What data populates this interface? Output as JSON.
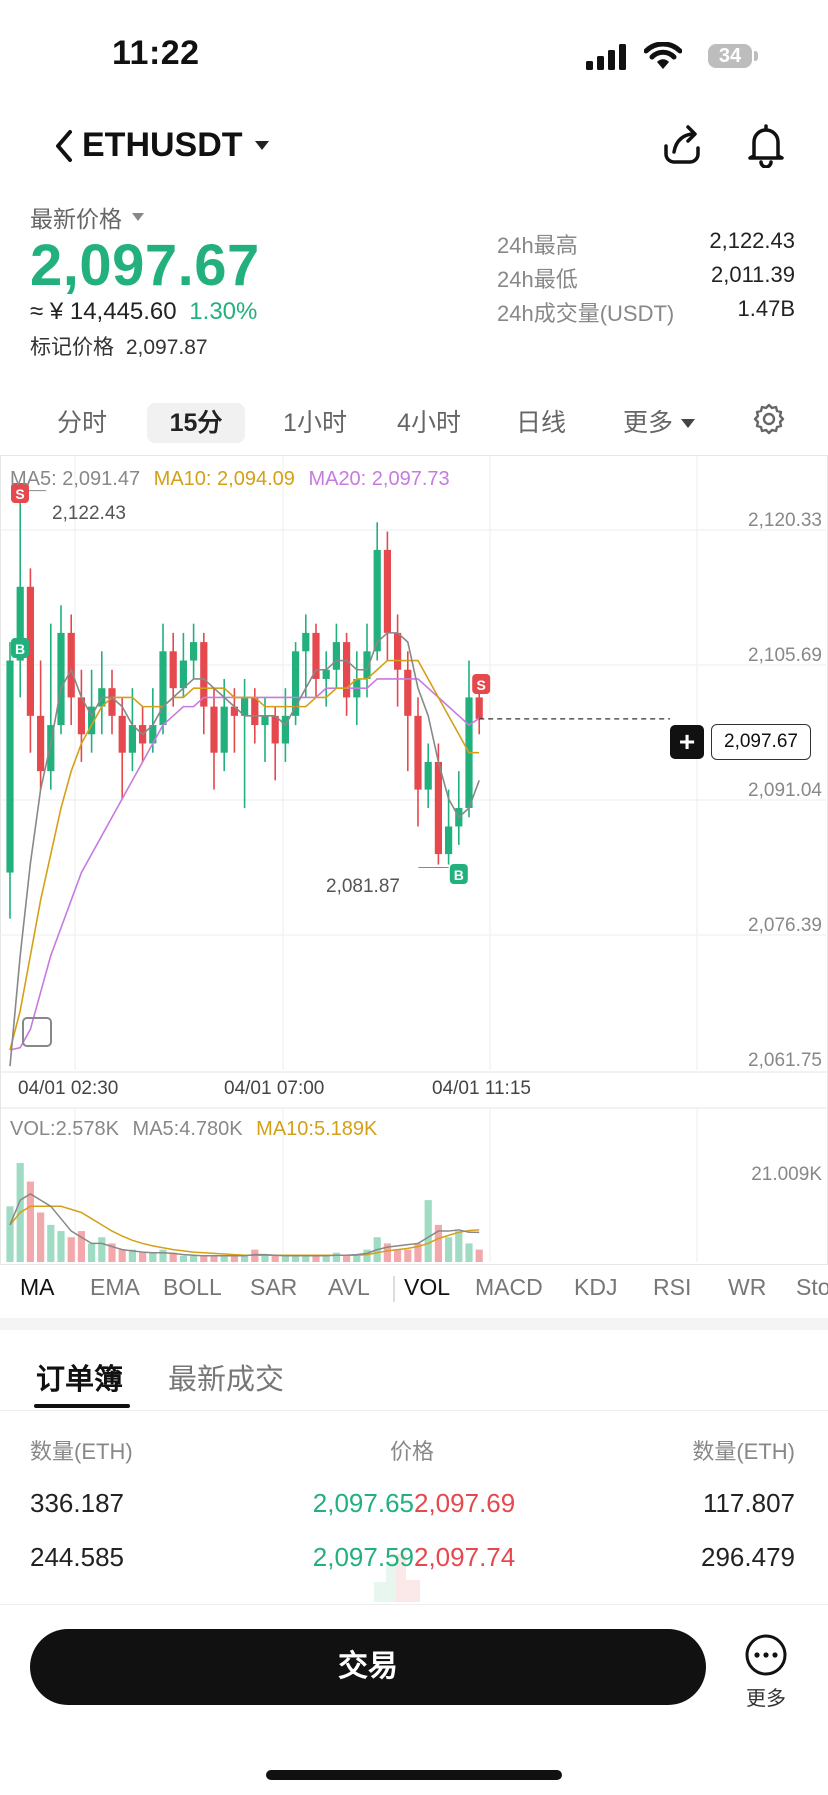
{
  "status_bar": {
    "time": "11:22",
    "battery": "34"
  },
  "header": {
    "pair": "ETHUSDT"
  },
  "price": {
    "latest_label": "最新价格",
    "last": "2,097.67",
    "cny": "≈ ¥ 14,445.60",
    "change_pct": "1.30%",
    "mark_label": "标记价格",
    "mark_value": "2,097.87"
  },
  "stats": [
    {
      "label": "24h最高",
      "value": "2,122.43"
    },
    {
      "label": "24h最低",
      "value": "2,011.39"
    },
    {
      "label": "24h成交量(USDT)",
      "value": "1.47B"
    }
  ],
  "intervals": [
    "分时",
    "15分",
    "1小时",
    "4小时",
    "日线",
    "更多"
  ],
  "active_interval": "15分",
  "chart": {
    "ma5": "MA5: 2,091.47",
    "ma10": "MA10: 2,094.09",
    "ma20": "MA20: 2,097.73",
    "ma_colors": {
      "ma5": "#888888",
      "ma10": "#d4a017",
      "ma20": "#c77ae0"
    },
    "y_ticks": [
      "2,120.33",
      "2,105.69",
      "2,091.04",
      "2,076.39",
      "2,061.75"
    ],
    "x_ticks": [
      "04/01 02:30",
      "04/01 07:00",
      "04/01 11:15"
    ],
    "high_label": "2,122.43",
    "low_label": "2,081.87",
    "current_price": "2,097.67",
    "vol_label": "VOL:2.578K",
    "vol_ma5": "MA5:4.780K",
    "vol_ma10": "MA10:5.189K",
    "vol_max": "21.009K",
    "signal_s": "S",
    "signal_b": "B",
    "up_color": "#22b07d",
    "down_color": "#e5484d"
  },
  "chart_data": {
    "type": "candlestick",
    "interval": "15分",
    "y_range": [
      2061.75,
      2120.33
    ],
    "candles": [
      {
        "o": 2081.0,
        "c": 2104.0,
        "h": 2106.0,
        "l": 2076.0
      },
      {
        "o": 2104.0,
        "c": 2112.0,
        "h": 2122.43,
        "l": 2100.0
      },
      {
        "o": 2112.0,
        "c": 2098.0,
        "h": 2114.0,
        "l": 2094.0
      },
      {
        "o": 2098.0,
        "c": 2092.0,
        "h": 2104.0,
        "l": 2090.0
      },
      {
        "o": 2092.0,
        "c": 2097.0,
        "h": 2108.0,
        "l": 2090.0
      },
      {
        "o": 2097.0,
        "c": 2107.0,
        "h": 2110.0,
        "l": 2096.0
      },
      {
        "o": 2107.0,
        "c": 2100.0,
        "h": 2109.0,
        "l": 2097.0
      },
      {
        "o": 2100.0,
        "c": 2096.0,
        "h": 2103.0,
        "l": 2093.0
      },
      {
        "o": 2096.0,
        "c": 2099.0,
        "h": 2103.0,
        "l": 2094.0
      },
      {
        "o": 2099.0,
        "c": 2101.0,
        "h": 2105.0,
        "l": 2096.0
      },
      {
        "o": 2101.0,
        "c": 2098.0,
        "h": 2103.0,
        "l": 2096.0
      },
      {
        "o": 2098.0,
        "c": 2094.0,
        "h": 2100.0,
        "l": 2089.0
      },
      {
        "o": 2094.0,
        "c": 2097.0,
        "h": 2101.0,
        "l": 2092.0
      },
      {
        "o": 2097.0,
        "c": 2095.0,
        "h": 2099.0,
        "l": 2093.0
      },
      {
        "o": 2095.0,
        "c": 2097.0,
        "h": 2101.0,
        "l": 2094.0
      },
      {
        "o": 2097.0,
        "c": 2105.0,
        "h": 2108.0,
        "l": 2096.0
      },
      {
        "o": 2105.0,
        "c": 2101.0,
        "h": 2107.0,
        "l": 2099.0
      },
      {
        "o": 2101.0,
        "c": 2104.0,
        "h": 2107.0,
        "l": 2100.0
      },
      {
        "o": 2104.0,
        "c": 2106.0,
        "h": 2108.0,
        "l": 2102.0
      },
      {
        "o": 2106.0,
        "c": 2099.0,
        "h": 2107.0,
        "l": 2096.0
      },
      {
        "o": 2099.0,
        "c": 2094.0,
        "h": 2101.0,
        "l": 2090.0
      },
      {
        "o": 2094.0,
        "c": 2099.0,
        "h": 2102.0,
        "l": 2092.0
      },
      {
        "o": 2099.0,
        "c": 2098.0,
        "h": 2101.0,
        "l": 2094.0
      },
      {
        "o": 2098.0,
        "c": 2100.0,
        "h": 2102.0,
        "l": 2088.0
      },
      {
        "o": 2100.0,
        "c": 2097.0,
        "h": 2101.0,
        "l": 2095.0
      },
      {
        "o": 2097.0,
        "c": 2098.0,
        "h": 2100.0,
        "l": 2093.0
      },
      {
        "o": 2098.0,
        "c": 2095.0,
        "h": 2099.0,
        "l": 2091.0
      },
      {
        "o": 2095.0,
        "c": 2098.0,
        "h": 2101.0,
        "l": 2093.0
      },
      {
        "o": 2098.0,
        "c": 2105.0,
        "h": 2106.0,
        "l": 2097.0
      },
      {
        "o": 2105.0,
        "c": 2107.0,
        "h": 2109.0,
        "l": 2100.0
      },
      {
        "o": 2107.0,
        "c": 2102.0,
        "h": 2108.0,
        "l": 2100.0
      },
      {
        "o": 2102.0,
        "c": 2103.0,
        "h": 2105.0,
        "l": 2099.0
      },
      {
        "o": 2103.0,
        "c": 2106.0,
        "h": 2108.0,
        "l": 2101.0
      },
      {
        "o": 2106.0,
        "c": 2100.0,
        "h": 2107.0,
        "l": 2098.0
      },
      {
        "o": 2100.0,
        "c": 2102.0,
        "h": 2105.0,
        "l": 2097.0
      },
      {
        "o": 2102.0,
        "c": 2105.0,
        "h": 2108.0,
        "l": 2100.0
      },
      {
        "o": 2105.0,
        "c": 2116.0,
        "h": 2119.0,
        "l": 2104.0
      },
      {
        "o": 2116.0,
        "c": 2107.0,
        "h": 2118.0,
        "l": 2104.0
      },
      {
        "o": 2107.0,
        "c": 2103.0,
        "h": 2109.0,
        "l": 2099.0
      },
      {
        "o": 2103.0,
        "c": 2098.0,
        "h": 2105.0,
        "l": 2092.0
      },
      {
        "o": 2098.0,
        "c": 2090.0,
        "h": 2100.0,
        "l": 2086.0
      },
      {
        "o": 2090.0,
        "c": 2093.0,
        "h": 2095.0,
        "l": 2088.0
      },
      {
        "o": 2093.0,
        "c": 2083.0,
        "h": 2095.0,
        "l": 2081.87
      },
      {
        "o": 2083.0,
        "c": 2086.0,
        "h": 2090.0,
        "l": 2081.87
      },
      {
        "o": 2086.0,
        "c": 2088.0,
        "h": 2092.0,
        "l": 2084.0
      },
      {
        "o": 2088.0,
        "c": 2100.0,
        "h": 2104.0,
        "l": 2087.0
      },
      {
        "o": 2100.0,
        "c": 2097.67,
        "h": 2102.0,
        "l": 2096.0
      }
    ],
    "volume": [
      9,
      16,
      13,
      8,
      6,
      5,
      4,
      5,
      3,
      4,
      3,
      2,
      2,
      1.5,
      1.5,
      2,
      1.5,
      1,
      1,
      1,
      1,
      1,
      1,
      1,
      2,
      1,
      1,
      1,
      1,
      1,
      1,
      1,
      1.5,
      1,
      1,
      2,
      4,
      3,
      2,
      2,
      3,
      10,
      6,
      4,
      5,
      3,
      2
    ],
    "ma5": [
      2060,
      2072,
      2082,
      2090,
      2095,
      2101,
      2103,
      2100,
      2098,
      2100,
      2100,
      2099,
      2097,
      2096,
      2097,
      2099,
      2100,
      2101,
      2102,
      2102,
      2101,
      2100,
      2099,
      2098,
      2098,
      2098,
      2098,
      2097,
      2099,
      2101,
      2103,
      2103,
      2104,
      2104,
      2103,
      2103,
      2106,
      2107,
      2107,
      2106,
      2101,
      2098,
      2093,
      2089,
      2087,
      2088,
      2091
    ],
    "ma10": [
      2061.75,
      2066,
      2072,
      2078,
      2083,
      2088,
      2092,
      2095,
      2097,
      2099,
      2100,
      2100,
      2100,
      2099,
      2099,
      2099,
      2100,
      2100,
      2101,
      2101,
      2101,
      2101,
      2100,
      2100,
      2100,
      2099,
      2099,
      2099,
      2099,
      2099,
      2100,
      2100,
      2101,
      2101,
      2102,
      2102,
      2103,
      2104,
      2104,
      2104,
      2104,
      2102,
      2100,
      2098,
      2096,
      2094,
      2094
    ],
    "ma20": [
      2061.75,
      2062,
      2064,
      2068,
      2072,
      2075,
      2078,
      2081,
      2083,
      2085,
      2087,
      2089,
      2091,
      2093,
      2095,
      2097,
      2098,
      2099,
      2099,
      2100,
      2100,
      2100,
      2100,
      2100,
      2100,
      2100,
      2100,
      2100,
      2100,
      2100,
      2100,
      2101,
      2101,
      2101,
      2101,
      2101,
      2102,
      2102,
      2102,
      2102,
      2102,
      2101,
      2100,
      2099,
      2098,
      2097,
      2097.73
    ],
    "vol_ma5": [
      6,
      10,
      11,
      10,
      9,
      7,
      5,
      4,
      3,
      3,
      2.5,
      2,
      1.8,
      1.6,
      1.5,
      1.5,
      1.4,
      1.2,
      1.1,
      1,
      1,
      1,
      1,
      1,
      1.2,
      1.2,
      1.1,
      1,
      1,
      1,
      1,
      1,
      1.1,
      1.1,
      1.2,
      1.4,
      2,
      2.4,
      2.6,
      2.8,
      3,
      4,
      5,
      5,
      5.2,
      4.8,
      4.78
    ],
    "vol_ma10": [
      6,
      8,
      9,
      9,
      9,
      9,
      8.5,
      8,
      7,
      6,
      5,
      4.2,
      3.5,
      3,
      2.6,
      2.3,
      2,
      1.8,
      1.6,
      1.5,
      1.4,
      1.3,
      1.2,
      1.1,
      1.1,
      1.1,
      1.1,
      1.1,
      1.1,
      1.1,
      1.1,
      1.1,
      1.1,
      1.1,
      1.1,
      1.2,
      1.5,
      1.8,
      2,
      2.2,
      2.5,
      3,
      3.8,
      4.3,
      4.8,
      5.1,
      5.189
    ]
  },
  "indicators": [
    "MA",
    "EMA",
    "BOLL",
    "SAR",
    "AVL",
    "VOL",
    "MACD",
    "KDJ",
    "RSI",
    "WR",
    "StochRSI"
  ],
  "active_indicators": [
    "MA",
    "VOL"
  ],
  "order_book": {
    "tabs": [
      "订单簿",
      "最新成交"
    ],
    "headers": {
      "bid_qty": "数量(ETH)",
      "price": "价格",
      "ask_qty": "数量(ETH)"
    },
    "rows": [
      {
        "bid_qty": "336.187",
        "bid_price": "2,097.65",
        "ask_price": "2,097.69",
        "ask_qty": "117.807"
      },
      {
        "bid_qty": "244.585",
        "bid_price": "2,097.59",
        "ask_price": "2,097.74",
        "ask_qty": "296.479"
      }
    ]
  },
  "bottom": {
    "trade": "交易",
    "more": "更多"
  }
}
